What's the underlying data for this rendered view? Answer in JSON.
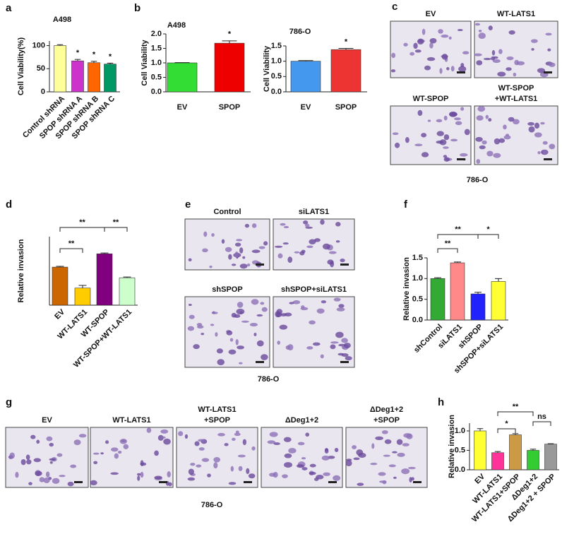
{
  "panel_letters": [
    "a",
    "b",
    "c",
    "d",
    "e",
    "f",
    "g",
    "h"
  ],
  "chart_data": [
    {
      "type": "bar",
      "title": "A498",
      "y_label": "Cell Viability(%)",
      "categories": [
        "Control shRNA",
        "SPOP shRNA A",
        "SPOP shRNA B",
        "SPOP shRNA C"
      ],
      "values": [
        100,
        67,
        63,
        60
      ],
      "errors": [
        2,
        3,
        3,
        2
      ],
      "colors": [
        "#ffff99",
        "#cc33cc",
        "#ff6600",
        "#009966"
      ],
      "ylim": [
        0,
        110
      ],
      "yticks": [
        0,
        50,
        100
      ],
      "annotations": [
        "*",
        "*",
        "*"
      ]
    },
    {
      "type": "bar",
      "title": "A498",
      "y_label": "Cell Viability",
      "categories": [
        "EV",
        "SPOP"
      ],
      "values": [
        1.0,
        1.68
      ],
      "errors": [
        0.01,
        0.08
      ],
      "colors": [
        "#33dd33",
        "#ee0000"
      ],
      "ylim": [
        0,
        2.0
      ],
      "yticks": [
        {
          "value": 0,
          "label": "0.0"
        },
        0.5,
        {
          "value": 1,
          "label": "1.0"
        },
        1.5,
        {
          "value": 2,
          "label": "2.0"
        }
      ],
      "annotations": [
        "*"
      ]
    },
    {
      "type": "bar",
      "title": "786-O",
      "y_label": "Cell Viability",
      "categories": [
        "EV",
        "SPOP"
      ],
      "values": [
        1.0,
        1.38
      ],
      "errors": [
        0.02,
        0.04
      ],
      "colors": [
        "#4499ee",
        "#ee3333"
      ],
      "ylim": [
        0,
        1.5
      ],
      "yticks": [
        {
          "value": 0,
          "label": "0.0"
        },
        0.5,
        {
          "value": 1,
          "label": "1.0"
        },
        1.5
      ],
      "annotations": [
        "*"
      ]
    },
    {
      "type": "bar",
      "y_label": "Relative invasion",
      "categories": [
        "EV",
        "WT-LATS1",
        "WT-SPOP",
        "WT-SPOP+WT-LATS1"
      ],
      "values": [
        1.0,
        0.45,
        1.35,
        0.72
      ],
      "errors": [
        0.02,
        0.07,
        0.02,
        0.02
      ],
      "colors": [
        "#cc6600",
        "#ffcc00",
        "#800080",
        "#ccffcc"
      ],
      "ylim": [
        0,
        1.8
      ],
      "annotations": [
        "**",
        "**",
        "**"
      ]
    },
    {
      "type": "bar",
      "y_label": "Relative invasion",
      "categories": [
        "shControl",
        "siLATS1",
        "shSPOP",
        "shSPOP+siLATS1"
      ],
      "values": [
        1.0,
        1.38,
        0.63,
        0.93
      ],
      "errors": [
        0.02,
        0.02,
        0.04,
        0.07
      ],
      "colors": [
        "#33aa33",
        "#ff8888",
        "#2222ff",
        "#ffff33"
      ],
      "ylim": [
        0,
        1.5
      ],
      "yticks": [
        {
          "value": 0,
          "label": "0.0"
        },
        0.5,
        {
          "value": 1,
          "label": "1.0"
        },
        1.5
      ],
      "annotations": [
        "**",
        "**",
        "*"
      ]
    },
    {
      "type": "bar",
      "y_label": "Relative invasion",
      "categories": [
        "EV",
        "WT-LATS1",
        "WT-LATS1+SPOP",
        "ΔDeg1+2",
        "ΔDeg1+2 + SPOP"
      ],
      "values": [
        1.0,
        0.44,
        0.9,
        0.5,
        0.66
      ],
      "errors": [
        0.06,
        0.03,
        0.03,
        0.03,
        0.01
      ],
      "colors": [
        "#ffff33",
        "#ff3399",
        "#cc9944",
        "#33cc33",
        "#999999"
      ],
      "ylim": [
        0,
        1.2
      ],
      "yticks": [
        {
          "value": 0,
          "label": "0.0"
        },
        0.5,
        {
          "value": 1,
          "label": "1.0"
        }
      ],
      "annotations": [
        "**",
        "*",
        "ns"
      ]
    }
  ],
  "image_panels": [
    {
      "labels": [
        [
          "EV"
        ],
        [
          "WT-LATS1"
        ],
        [
          "WT-SPOP"
        ],
        [
          "WT-SPOP",
          "+WT-LATS1"
        ]
      ],
      "caption": "786-O"
    },
    {
      "labels": [
        [
          "Control"
        ],
        [
          "siLATS1"
        ],
        [
          "shSPOP"
        ],
        [
          "shSPOP+siLATS1"
        ]
      ],
      "caption": "786-O"
    },
    {
      "labels": [
        [
          "EV"
        ],
        [
          "WT-LATS1"
        ],
        [
          "WT-LATS1",
          "+SPOP"
        ],
        [
          "ΔDeg1+2"
        ],
        [
          "ΔDeg1+2",
          "+SPOP"
        ]
      ],
      "caption": "786-O"
    }
  ]
}
